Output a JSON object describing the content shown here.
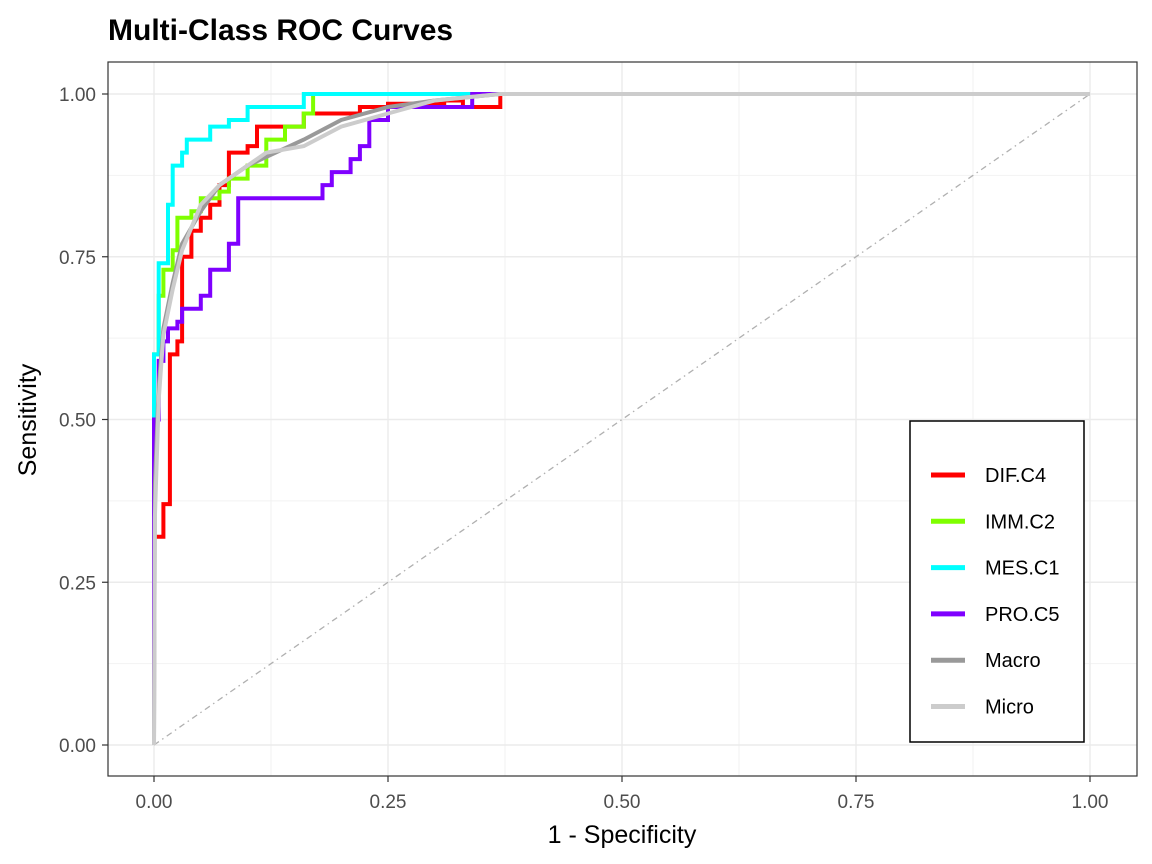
{
  "chart_data": {
    "type": "line",
    "title": "Multi-Class ROC Curves",
    "xlabel": "1 - Specificity",
    "ylabel": "Sensitivity",
    "xlim": [
      0,
      1
    ],
    "ylim": [
      0,
      1
    ],
    "x_ticks": [
      0,
      0.25,
      0.5,
      0.75,
      1
    ],
    "y_ticks": [
      0,
      0.25,
      0.5,
      0.75,
      1
    ],
    "x_tick_labels": [
      "0.00",
      "0.25",
      "0.50",
      "0.75",
      "1.00"
    ],
    "y_tick_labels": [
      "0.00",
      "0.25",
      "0.50",
      "0.75",
      "1.00"
    ],
    "grid": true,
    "legend_position": "bottom-right",
    "reference_line": {
      "style": "dot-dash",
      "color": "#b0b0b0",
      "points": [
        [
          0,
          0
        ],
        [
          1,
          1
        ]
      ]
    },
    "series": [
      {
        "name": "DIF.C4",
        "color": "#ff0000",
        "step": true,
        "width": 4,
        "points": [
          [
            0,
            0
          ],
          [
            0,
            0.32
          ],
          [
            0.01,
            0.32
          ],
          [
            0.01,
            0.37
          ],
          [
            0.017,
            0.37
          ],
          [
            0.017,
            0.6
          ],
          [
            0.025,
            0.6
          ],
          [
            0.025,
            0.62
          ],
          [
            0.03,
            0.62
          ],
          [
            0.03,
            0.75
          ],
          [
            0.04,
            0.75
          ],
          [
            0.04,
            0.79
          ],
          [
            0.05,
            0.79
          ],
          [
            0.05,
            0.81
          ],
          [
            0.06,
            0.81
          ],
          [
            0.06,
            0.83
          ],
          [
            0.07,
            0.83
          ],
          [
            0.07,
            0.86
          ],
          [
            0.08,
            0.86
          ],
          [
            0.08,
            0.91
          ],
          [
            0.1,
            0.91
          ],
          [
            0.1,
            0.92
          ],
          [
            0.11,
            0.92
          ],
          [
            0.11,
            0.95
          ],
          [
            0.13,
            0.95
          ],
          [
            0.13,
            0.95
          ],
          [
            0.16,
            0.95
          ],
          [
            0.16,
            0.97
          ],
          [
            0.22,
            0.97
          ],
          [
            0.22,
            0.98
          ],
          [
            0.25,
            0.98
          ],
          [
            0.25,
            0.985
          ],
          [
            0.31,
            0.985
          ],
          [
            0.31,
            0.99
          ],
          [
            0.33,
            0.99
          ],
          [
            0.33,
            0.98
          ],
          [
            0.37,
            0.98
          ],
          [
            0.37,
            1
          ],
          [
            1,
            1
          ]
        ]
      },
      {
        "name": "IMM.C2",
        "color": "#7fff00",
        "step": true,
        "width": 4,
        "points": [
          [
            0,
            0
          ],
          [
            0,
            0.6
          ],
          [
            0.005,
            0.6
          ],
          [
            0.005,
            0.69
          ],
          [
            0.01,
            0.69
          ],
          [
            0.01,
            0.73
          ],
          [
            0.02,
            0.73
          ],
          [
            0.02,
            0.76
          ],
          [
            0.025,
            0.76
          ],
          [
            0.025,
            0.81
          ],
          [
            0.04,
            0.81
          ],
          [
            0.04,
            0.82
          ],
          [
            0.05,
            0.82
          ],
          [
            0.05,
            0.84
          ],
          [
            0.07,
            0.84
          ],
          [
            0.07,
            0.85
          ],
          [
            0.08,
            0.85
          ],
          [
            0.08,
            0.87
          ],
          [
            0.1,
            0.87
          ],
          [
            0.1,
            0.89
          ],
          [
            0.12,
            0.89
          ],
          [
            0.12,
            0.93
          ],
          [
            0.14,
            0.93
          ],
          [
            0.14,
            0.95
          ],
          [
            0.16,
            0.95
          ],
          [
            0.16,
            0.97
          ],
          [
            0.17,
            0.97
          ],
          [
            0.17,
            1
          ],
          [
            1,
            1
          ]
        ]
      },
      {
        "name": "MES.C1",
        "color": "#00ffff",
        "step": true,
        "width": 4,
        "points": [
          [
            0,
            0
          ],
          [
            0,
            0.6
          ],
          [
            0.005,
            0.6
          ],
          [
            0.005,
            0.74
          ],
          [
            0.015,
            0.74
          ],
          [
            0.015,
            0.83
          ],
          [
            0.02,
            0.83
          ],
          [
            0.02,
            0.89
          ],
          [
            0.03,
            0.89
          ],
          [
            0.03,
            0.91
          ],
          [
            0.035,
            0.91
          ],
          [
            0.035,
            0.93
          ],
          [
            0.06,
            0.93
          ],
          [
            0.06,
            0.95
          ],
          [
            0.08,
            0.95
          ],
          [
            0.08,
            0.96
          ],
          [
            0.1,
            0.96
          ],
          [
            0.1,
            0.98
          ],
          [
            0.16,
            0.98
          ],
          [
            0.16,
            1
          ],
          [
            1,
            1
          ]
        ]
      },
      {
        "name": "PRO.C5",
        "color": "#7f00ff",
        "step": true,
        "width": 4,
        "points": [
          [
            0,
            0
          ],
          [
            0,
            0.5
          ],
          [
            0.005,
            0.5
          ],
          [
            0.005,
            0.59
          ],
          [
            0.01,
            0.59
          ],
          [
            0.01,
            0.62
          ],
          [
            0.015,
            0.62
          ],
          [
            0.015,
            0.64
          ],
          [
            0.025,
            0.64
          ],
          [
            0.025,
            0.65
          ],
          [
            0.03,
            0.65
          ],
          [
            0.03,
            0.67
          ],
          [
            0.05,
            0.67
          ],
          [
            0.05,
            0.69
          ],
          [
            0.06,
            0.69
          ],
          [
            0.06,
            0.73
          ],
          [
            0.08,
            0.73
          ],
          [
            0.08,
            0.77
          ],
          [
            0.09,
            0.77
          ],
          [
            0.09,
            0.84
          ],
          [
            0.18,
            0.84
          ],
          [
            0.18,
            0.86
          ],
          [
            0.19,
            0.86
          ],
          [
            0.19,
            0.88
          ],
          [
            0.21,
            0.88
          ],
          [
            0.21,
            0.9
          ],
          [
            0.22,
            0.9
          ],
          [
            0.22,
            0.92
          ],
          [
            0.23,
            0.92
          ],
          [
            0.23,
            0.96
          ],
          [
            0.25,
            0.96
          ],
          [
            0.25,
            0.98
          ],
          [
            0.34,
            0.98
          ],
          [
            0.34,
            1
          ],
          [
            1,
            1
          ]
        ]
      },
      {
        "name": "Macro",
        "color": "#999999",
        "step": false,
        "width": 4,
        "points": [
          [
            0,
            0
          ],
          [
            0.001,
            0.4
          ],
          [
            0.005,
            0.55
          ],
          [
            0.01,
            0.64
          ],
          [
            0.02,
            0.71
          ],
          [
            0.03,
            0.77
          ],
          [
            0.05,
            0.82
          ],
          [
            0.07,
            0.86
          ],
          [
            0.1,
            0.89
          ],
          [
            0.13,
            0.91
          ],
          [
            0.16,
            0.93
          ],
          [
            0.2,
            0.96
          ],
          [
            0.25,
            0.98
          ],
          [
            0.3,
            0.99
          ],
          [
            0.37,
            1
          ],
          [
            1,
            1
          ]
        ]
      },
      {
        "name": "Micro",
        "color": "#cccccc",
        "step": false,
        "width": 4,
        "points": [
          [
            0,
            0
          ],
          [
            0.001,
            0.35
          ],
          [
            0.005,
            0.53
          ],
          [
            0.01,
            0.63
          ],
          [
            0.02,
            0.7
          ],
          [
            0.03,
            0.76
          ],
          [
            0.05,
            0.83
          ],
          [
            0.07,
            0.86
          ],
          [
            0.1,
            0.89
          ],
          [
            0.12,
            0.91
          ],
          [
            0.16,
            0.92
          ],
          [
            0.2,
            0.95
          ],
          [
            0.25,
            0.97
          ],
          [
            0.3,
            0.99
          ],
          [
            0.37,
            1
          ],
          [
            1,
            1
          ]
        ]
      }
    ]
  }
}
